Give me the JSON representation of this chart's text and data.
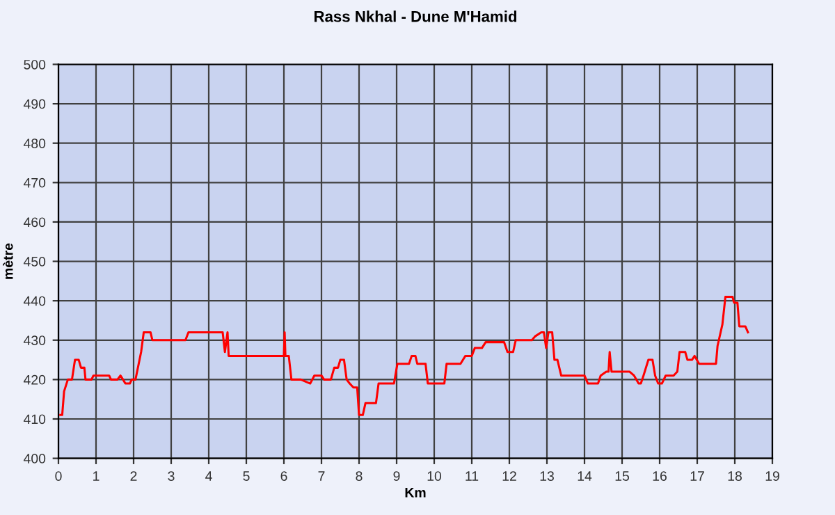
{
  "chart_data": {
    "type": "line",
    "title": "Rass Nkhal - Dune M'Hamid",
    "xlabel": "Km",
    "ylabel": "mètre",
    "xlim": [
      0,
      19
    ],
    "xticks": [
      0,
      1,
      2,
      3,
      4,
      5,
      6,
      7,
      8,
      9,
      10,
      11,
      12,
      13,
      14,
      15,
      16,
      17,
      18,
      19
    ],
    "ylim": [
      400,
      500
    ],
    "yticks": [
      400,
      410,
      420,
      430,
      440,
      450,
      460,
      470,
      480,
      490,
      500
    ],
    "grid": true,
    "legend": false,
    "marker": "none",
    "line_style": "solid",
    "series": [
      {
        "color": "#ff0000",
        "x": [
          0.05,
          0.1,
          0.15,
          0.25,
          0.36,
          0.44,
          0.54,
          0.6,
          0.69,
          0.72,
          0.88,
          0.93,
          1.35,
          1.4,
          1.57,
          1.65,
          1.72,
          1.78,
          1.9,
          1.95,
          2.05,
          2.2,
          2.27,
          2.45,
          2.5,
          3.38,
          3.46,
          4.37,
          4.43,
          4.5,
          4.53,
          4.6,
          6.0,
          6.02,
          6.04,
          6.13,
          6.2,
          6.45,
          6.7,
          6.81,
          7.0,
          7.07,
          7.25,
          7.34,
          7.44,
          7.5,
          7.6,
          7.67,
          7.75,
          7.85,
          7.95,
          8.0,
          8.1,
          8.17,
          8.45,
          8.52,
          8.93,
          9.02,
          9.33,
          9.4,
          9.5,
          9.55,
          9.77,
          9.83,
          10.27,
          10.33,
          10.7,
          10.83,
          11.0,
          11.08,
          11.27,
          11.37,
          11.86,
          11.95,
          12.1,
          12.17,
          12.6,
          12.69,
          12.85,
          12.92,
          12.98,
          13.04,
          13.14,
          13.2,
          13.28,
          13.38,
          14.0,
          14.09,
          14.36,
          14.43,
          14.58,
          14.64,
          14.67,
          14.72,
          15.2,
          15.32,
          15.44,
          15.5,
          15.57,
          15.7,
          15.81,
          15.88,
          15.96,
          16.06,
          16.16,
          16.37,
          16.47,
          16.53,
          16.68,
          16.74,
          16.86,
          16.93,
          17.05,
          17.42,
          17.5,
          17.54,
          17.67,
          17.75,
          17.94,
          17.98,
          18.07,
          18.12,
          18.28,
          18.35
        ],
        "values": [
          411,
          411,
          417,
          420,
          420,
          425,
          425,
          423,
          423,
          420,
          420,
          421,
          421,
          420,
          420,
          421,
          420,
          419,
          419,
          420,
          420,
          427,
          432,
          432,
          430,
          430,
          432,
          432,
          427,
          432,
          426,
          426,
          426,
          432,
          426,
          426,
          420,
          420,
          419,
          421,
          421,
          420,
          420,
          423,
          423,
          425,
          425,
          420,
          419,
          418,
          418,
          411,
          411,
          414,
          414,
          419,
          419,
          424,
          424,
          426,
          426,
          424,
          424,
          419,
          419,
          424,
          424,
          426,
          426,
          428,
          428,
          429.5,
          429.5,
          427,
          427,
          430,
          430,
          431,
          432,
          432,
          428,
          432,
          432,
          425,
          425,
          421,
          421,
          419,
          419,
          421,
          422,
          422,
          427,
          422,
          422,
          421,
          419,
          419,
          421,
          425,
          425,
          421,
          419,
          419,
          421,
          421,
          422,
          427,
          427,
          425,
          425,
          426,
          424,
          424,
          424,
          428.5,
          434,
          441,
          441,
          439.5,
          439.5,
          433.5,
          433.5,
          432
        ]
      }
    ]
  }
}
